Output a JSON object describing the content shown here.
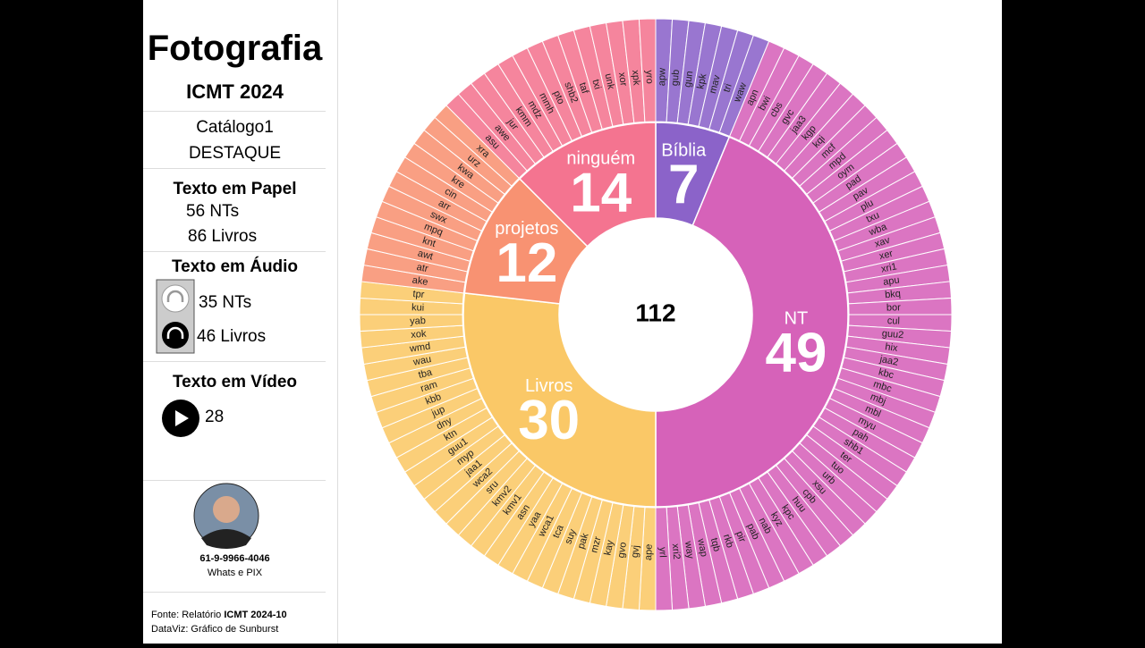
{
  "sidebar": {
    "title": "Fotografia",
    "subtitle": "ICMT 2024",
    "catalog": [
      "Catálogo1",
      "DESTAQUE"
    ],
    "paper": {
      "heading": "Texto em Papel",
      "items": [
        "56 NTs",
        "86 Livros"
      ]
    },
    "audio": {
      "heading": "Texto em Áudio",
      "items": [
        "35 NTs",
        "46 Livros"
      ]
    },
    "video": {
      "heading": "Texto em Vídeo",
      "count": 28
    },
    "contact": {
      "phone": "61-9-9966-4046",
      "note": "Whats e PIX"
    },
    "source": {
      "prefix": "Fonte: Relatório",
      "report": "ICMT 2024-10",
      "credit": "DataViz: Gráfico de Sunburst"
    }
  },
  "chart_data": {
    "type": "sunburst",
    "total": 112,
    "segments": [
      {
        "name": "Bíblia",
        "value": 7,
        "color": "#8b63c9",
        "children": [
          "apw",
          "gub",
          "gun",
          "kpk",
          "mav",
          "tri",
          "waw"
        ]
      },
      {
        "name": "NT",
        "value": 49,
        "color": "#d662b9",
        "children": [
          "apn",
          "bwi",
          "cbs",
          "gvc",
          "jaa3",
          "kgp",
          "kqi",
          "mcf",
          "mpd",
          "oym",
          "pad",
          "pav",
          "plu",
          "txu",
          "wba",
          "xav",
          "xer",
          "xri1",
          "apu",
          "bkq",
          "bor",
          "cul",
          "guu2",
          "hix",
          "jaa2",
          "kbc",
          "mbc",
          "mbj",
          "mbl",
          "myu",
          "pah",
          "shb1",
          "ter",
          "tuo",
          "urb",
          "xsu",
          "cpb",
          "huu",
          "kpc",
          "kyz",
          "nab",
          "pab",
          "pir",
          "rkb",
          "tqb",
          "wap",
          "way",
          "xri2",
          "yrl"
        ]
      },
      {
        "name": "Livros",
        "value": 30,
        "color": "#fac867",
        "children": [
          "ape",
          "gvj",
          "gvo",
          "kay",
          "mzr",
          "pak",
          "suy",
          "tca",
          "wca1",
          "yaa",
          "asn",
          "kmv1",
          "kmv2",
          "sru",
          "wca2",
          "jaa1",
          "myp",
          "guu1",
          "ktn",
          "dny",
          "jup",
          "kbb",
          "ram",
          "tba",
          "wau",
          "wmd",
          "xok",
          "yab",
          "kui",
          "tpr"
        ]
      },
      {
        "name": "projetos",
        "value": 12,
        "color": "#f89272",
        "children": [
          "ake",
          "atr",
          "awt",
          "knt",
          "mpq",
          "swx",
          "arr",
          "cin",
          "kre",
          "kwa",
          "urz",
          "xra"
        ]
      },
      {
        "name": "ninguém",
        "value": 14,
        "color": "#f47490",
        "children": [
          "asu",
          "awe",
          "jur",
          "kmm",
          "mdz",
          "mmh",
          "pto",
          "shb2",
          "taf",
          "txi",
          "unk",
          "xor",
          "xpk",
          "yro"
        ]
      }
    ]
  }
}
